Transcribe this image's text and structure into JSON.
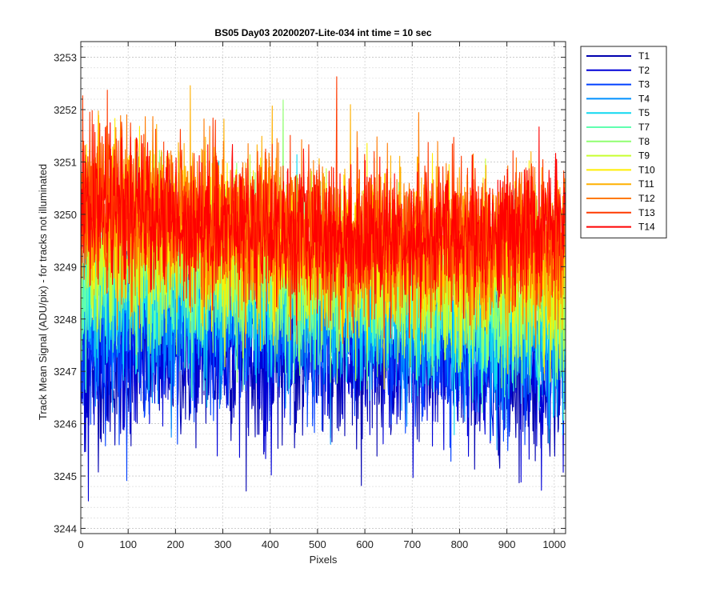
{
  "chart_data": {
    "type": "line",
    "title": "BS05 Day03 20200207-Lite-034 int time = 10 sec",
    "xlabel": "Pixels",
    "ylabel": "Track Mean Signal (ADU/pix) - for tracks not illuminated",
    "xlim": [
      0,
      1024
    ],
    "ylim": [
      3243.9,
      3253.3
    ],
    "x_ticks": [
      0,
      100,
      200,
      300,
      400,
      500,
      600,
      700,
      800,
      900,
      1000
    ],
    "y_ticks": [
      3244,
      3245,
      3246,
      3247,
      3248,
      3249,
      3250,
      3251,
      3252,
      3253
    ],
    "grid": true,
    "minor_grid_y": true,
    "legend_position": "outside-top-right",
    "n_points_per_series": 1024,
    "series": [
      {
        "name": "T1",
        "color": "#0000b0",
        "mean": 3247.0,
        "noise": 0.75,
        "min": 3243.9,
        "max": 3249.0
      },
      {
        "name": "T2",
        "color": "#0000d8",
        "mean": 3247.2,
        "noise": 0.75,
        "min": 3244.4,
        "max": 3249.3
      },
      {
        "name": "T3",
        "color": "#0040ff",
        "mean": 3247.5,
        "noise": 0.75,
        "min": 3244.6,
        "max": 3250.0
      },
      {
        "name": "T4",
        "color": "#0090ff",
        "mean": 3247.9,
        "noise": 0.75,
        "min": 3245.0,
        "max": 3252.2
      },
      {
        "name": "T5",
        "color": "#10d8f0",
        "mean": 3248.2,
        "noise": 0.75,
        "min": 3245.2,
        "max": 3252.7
      },
      {
        "name": "T7",
        "color": "#60ffb0",
        "mean": 3248.5,
        "noise": 0.75,
        "min": 3245.5,
        "max": 3252.8
      },
      {
        "name": "T8",
        "color": "#90ff70",
        "mean": 3248.8,
        "noise": 0.75,
        "min": 3246.0,
        "max": 3253.1
      },
      {
        "name": "T9",
        "color": "#c8ff30",
        "mean": 3249.1,
        "noise": 0.75,
        "min": 3246.2,
        "max": 3253.2
      },
      {
        "name": "T10",
        "color": "#ffee00",
        "mean": 3249.4,
        "noise": 0.75,
        "min": 3246.3,
        "max": 3253.2
      },
      {
        "name": "T11",
        "color": "#ffb000",
        "mean": 3249.6,
        "noise": 0.75,
        "min": 3246.5,
        "max": 3253.0
      },
      {
        "name": "T12",
        "color": "#ff7a00",
        "mean": 3249.8,
        "noise": 0.75,
        "min": 3246.6,
        "max": 3253.0
      },
      {
        "name": "T13",
        "color": "#ff3a00",
        "mean": 3249.9,
        "noise": 0.7,
        "min": 3246.5,
        "max": 3253.2
      },
      {
        "name": "T14",
        "color": "#ff0000",
        "mean": 3249.9,
        "noise": 0.65,
        "min": 3246.5,
        "max": 3253.2
      }
    ]
  }
}
